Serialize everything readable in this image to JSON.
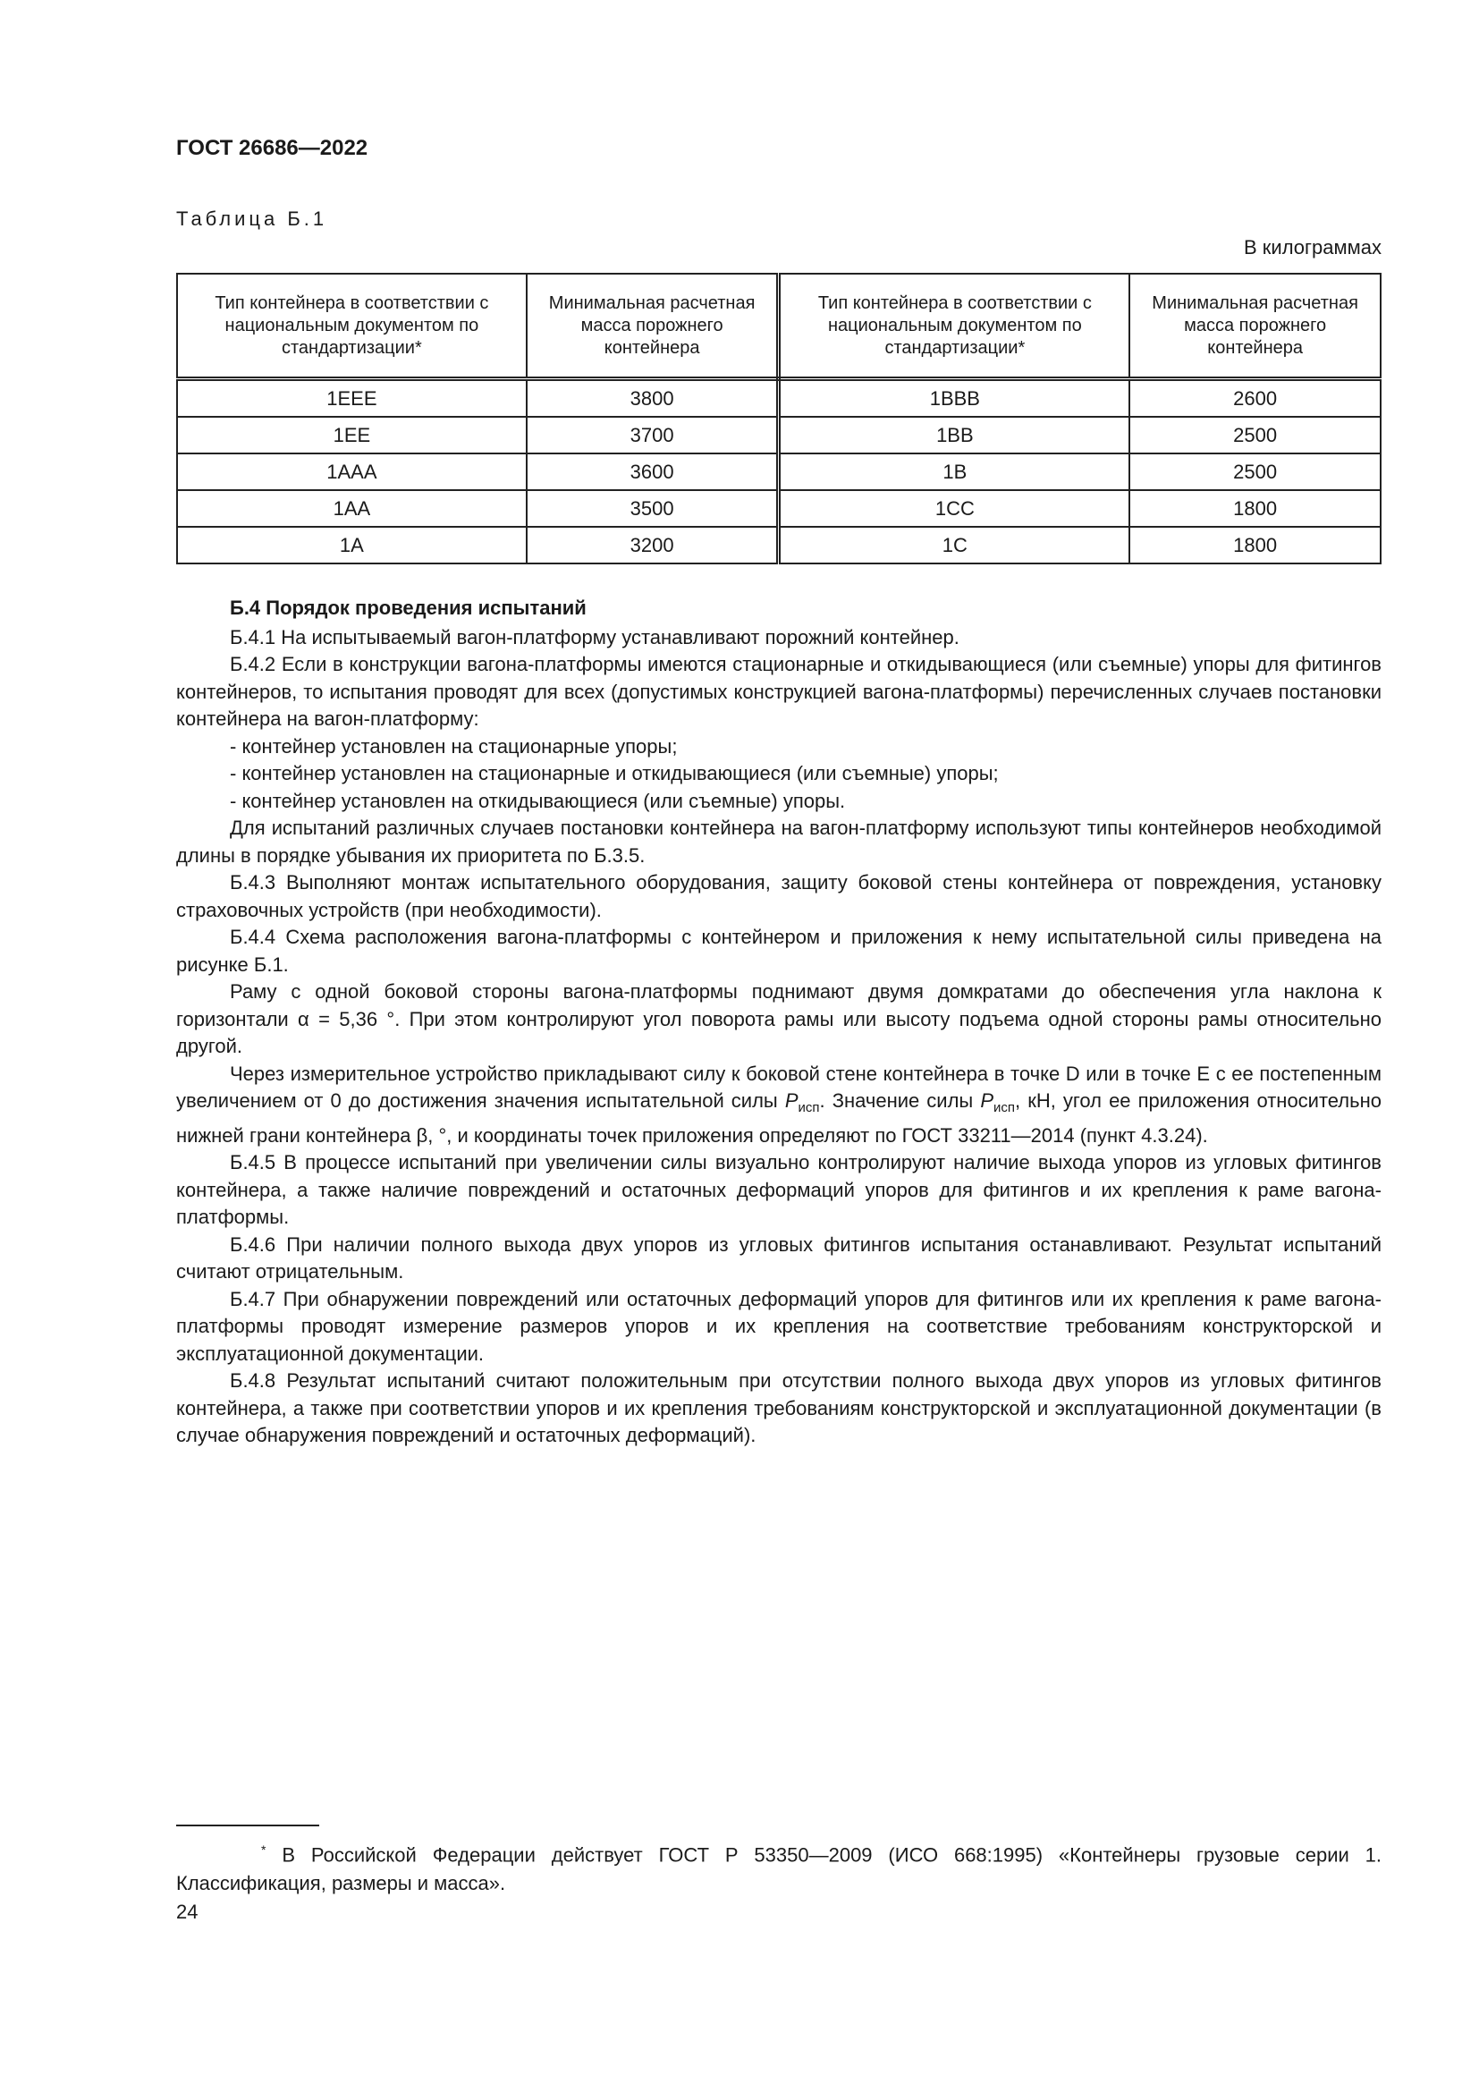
{
  "header": "ГОСТ 26686—2022",
  "table": {
    "caption": "Таблица Б.1",
    "units": "В килограммах",
    "headers": [
      "Тип контейнера в соответствии с национальным документом по стандартизации*",
      "Минимальная расчетная масса порожнего контейнера",
      "Тип контейнера в соответствии с национальным документом по стандартизации*",
      "Минимальная расчетная масса порожнего контейнера"
    ],
    "rows": [
      [
        "1EEE",
        "3800",
        "1BBB",
        "2600"
      ],
      [
        "1EE",
        "3700",
        "1BB",
        "2500"
      ],
      [
        "1AAA",
        "3600",
        "1B",
        "2500"
      ],
      [
        "1AA",
        "3500",
        "1CC",
        "1800"
      ],
      [
        "1A",
        "3200",
        "1C",
        "1800"
      ]
    ]
  },
  "section": {
    "title": "Б.4 Порядок проведения испытаний",
    "paragraphs": [
      "Б.4.1 На испытываемый вагон-платформу устанавливают порожний контейнер.",
      "Б.4.2 Если в конструкции вагона-платформы имеются стационарные и откидывающиеся (или съемные) упоры для фитингов контейнеров, то испытания проводят для всех (допустимых конструкцией вагона-платформы) перечисленных случаев постановки контейнера на вагон-платформу:",
      "- контейнер установлен на стационарные упоры;",
      "- контейнер установлен на стационарные и откидывающиеся (или съемные) упоры;",
      "- контейнер установлен на откидывающиеся (или съемные) упоры.",
      "Для испытаний различных случаев постановки контейнера на вагон-платформу используют типы контейнеров необходимой длины в порядке убывания их приоритета по Б.3.5.",
      "Б.4.3 Выполняют монтаж испытательного оборудования, защиту боковой стены контейнера от повреждения, установку страховочных устройств (при необходимости).",
      "Б.4.4 Схема расположения вагона-платформы с контейнером и приложения к нему испытательной силы приведена на рисунке Б.1.",
      "Раму с одной боковой стороны вагона-платформы поднимают двумя домкратами до обеспечения угла наклона к горизонтали α = 5,36 °. При этом контролируют угол поворота рамы или высоту подъема одной стороны рамы относительно другой."
    ],
    "force_paragraph": {
      "part1": "Через измерительное устройство прикладывают силу к боковой стене контейнера в точке D или в точке E с ее постепенным увеличением от 0 до достижения значения испытательной силы ",
      "symbol": "P",
      "subscript": "исп",
      "part2": ". Значение силы ",
      "part3": ", кН, угол ее приложения относительно нижней грани контейнера β, °, и координаты точек приложения определяют по ГОСТ 33211—2014 (пункт 4.3.24)."
    },
    "paragraphs_after": [
      "Б.4.5 В процессе испытаний при увеличении силы визуально контролируют наличие выхода упоров из угловых фитингов контейнера, а также наличие повреждений и остаточных деформаций упоров для фитингов и их крепления к раме вагона-платформы.",
      "Б.4.6 При наличии полного выхода двух упоров из угловых фитингов испытания останавливают. Результат испытаний считают отрицательным.",
      "Б.4.7 При обнаружении повреждений или остаточных деформаций упоров для фитингов или их крепления к раме вагона-платформы проводят измерение размеров упоров и их крепления на соответствие требованиям конструкторской и эксплуатационной документации.",
      "Б.4.8 Результат испытаний считают положительным при отсутствии полного выхода двух упоров из угловых фитингов контейнера, а также при соответствии упоров и их крепления требованиям конструкторской и эксплуатационной документации (в случае обнаружения повреждений и остаточных деформаций)."
    ]
  },
  "footnote": {
    "mark": "*",
    "text": "В Российской Федерации действует ГОСТ Р 53350—2009 (ИСО 668:1995) «Контейнеры грузовые серии 1. Классификация, размеры и масса»."
  },
  "page_number": "24"
}
